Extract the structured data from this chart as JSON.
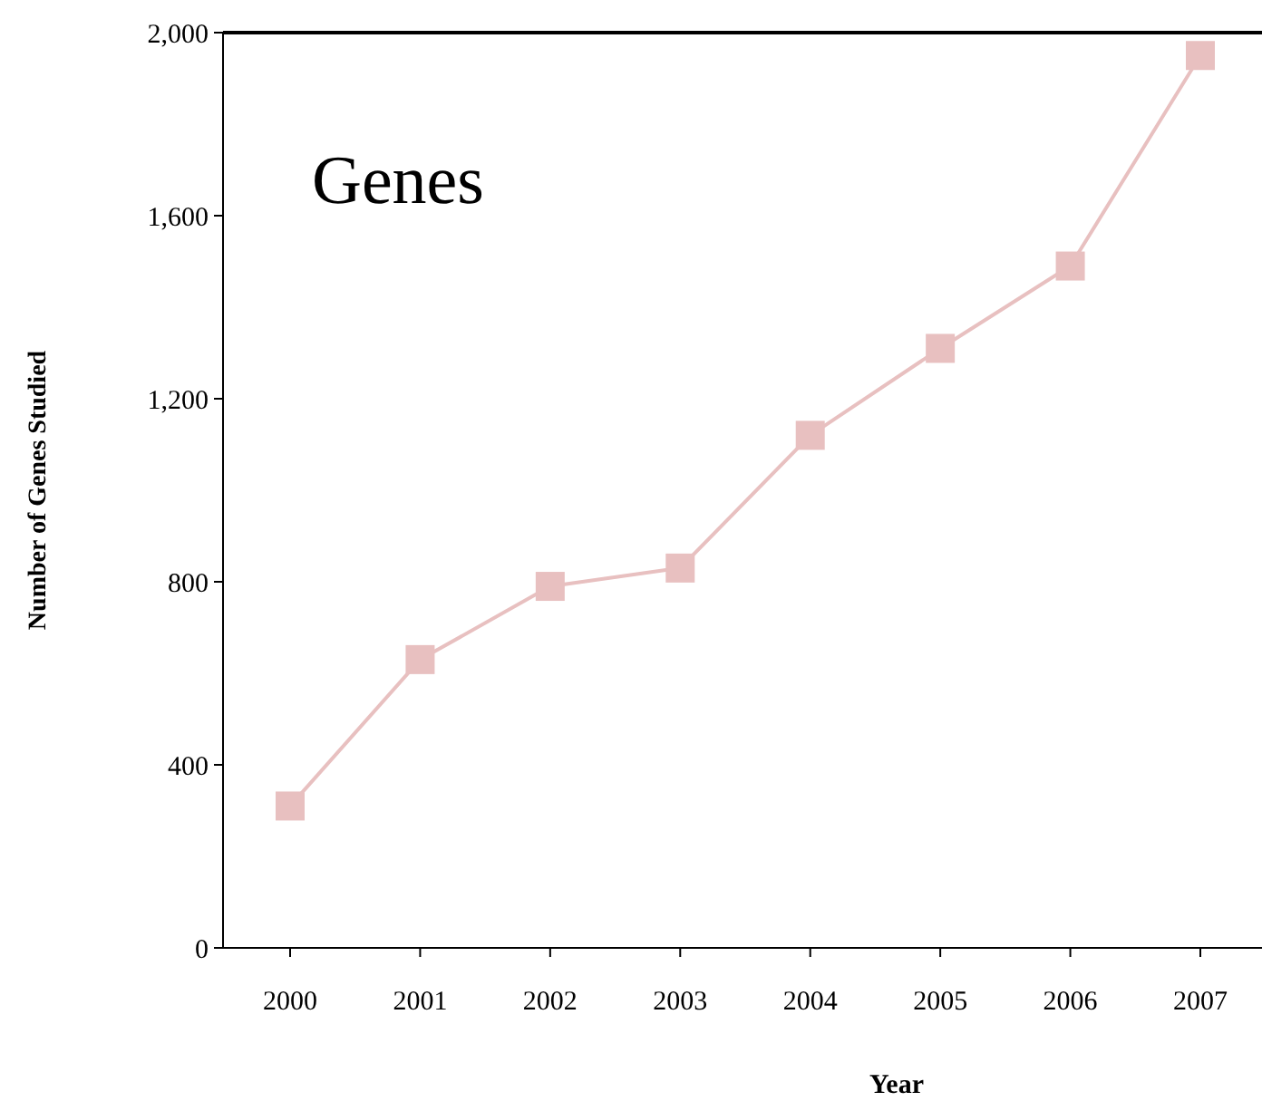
{
  "chart_data": {
    "type": "line",
    "xlabel": "Year",
    "ylabel": "Number of Genes Studied",
    "annotations": [
      "Genes"
    ],
    "categories": [
      "2000",
      "2001",
      "2002",
      "2003",
      "2004",
      "2005",
      "2006",
      "2007"
    ],
    "series": [
      {
        "color": "#e8c0c0",
        "values": [
          310,
          630,
          790,
          830,
          1120,
          1310,
          1490,
          1950
        ]
      }
    ],
    "ylim": [
      0,
      2000
    ],
    "yticks": [
      0,
      {
        "value": 400,
        "label": "400"
      },
      {
        "value": 800,
        "label": "800"
      },
      {
        "value": 1200,
        "label": "1,200"
      },
      {
        "value": 1600,
        "label": "1,600"
      },
      {
        "value": 2000,
        "label": "2,000"
      }
    ],
    "marker": "square",
    "grid": false
  }
}
